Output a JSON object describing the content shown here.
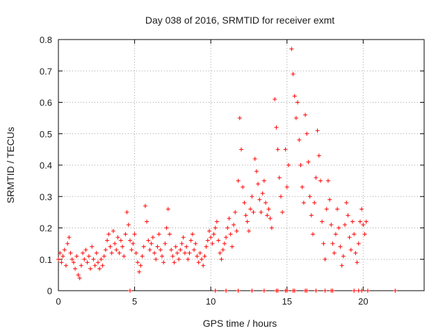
{
  "chart_data": {
    "type": "scatter",
    "title": "Day 038 of 2016, SRMTID for receiver exmt",
    "xlabel": "GPS time / hours",
    "ylabel": "SRMTID / TECUs",
    "xlim": [
      0,
      24
    ],
    "ylim": [
      0,
      0.8
    ],
    "xticks": [
      0,
      5,
      10,
      15,
      20
    ],
    "xtick_labels": [
      "0",
      "5",
      "10",
      "15",
      "20"
    ],
    "yticks": [
      0,
      0.1,
      0.2,
      0.3,
      0.4,
      0.5,
      0.6,
      0.7,
      0.8
    ],
    "ytick_labels": [
      "0",
      "0.1",
      "0.2",
      "0.3",
      "0.4",
      "0.5",
      "0.6",
      "0.7",
      "0.8"
    ],
    "grid": true,
    "marker": "+",
    "color": "#ff0000",
    "series": [
      {
        "name": "SRMTID",
        "points": [
          [
            0.0,
            0.1
          ],
          [
            0.1,
            0.12
          ],
          [
            0.2,
            0.09
          ],
          [
            0.3,
            0.11
          ],
          [
            0.4,
            0.13
          ],
          [
            0.5,
            0.08
          ],
          [
            0.6,
            0.15
          ],
          [
            0.7,
            0.17
          ],
          [
            0.8,
            0.12
          ],
          [
            0.9,
            0.1
          ],
          [
            1.0,
            0.09
          ],
          [
            1.1,
            0.07
          ],
          [
            1.2,
            0.11
          ],
          [
            1.3,
            0.05
          ],
          [
            1.4,
            0.04
          ],
          [
            1.5,
            0.08
          ],
          [
            1.6,
            0.12
          ],
          [
            1.7,
            0.1
          ],
          [
            1.8,
            0.13
          ],
          [
            1.9,
            0.09
          ],
          [
            2.0,
            0.11
          ],
          [
            2.1,
            0.07
          ],
          [
            2.2,
            0.14
          ],
          [
            2.3,
            0.1
          ],
          [
            2.4,
            0.08
          ],
          [
            2.5,
            0.12
          ],
          [
            2.6,
            0.09
          ],
          [
            2.7,
            0.07
          ],
          [
            2.8,
            0.1
          ],
          [
            2.9,
            0.08
          ],
          [
            3.0,
            0.11
          ],
          [
            3.1,
            0.13
          ],
          [
            3.2,
            0.16
          ],
          [
            3.3,
            0.18
          ],
          [
            3.4,
            0.14
          ],
          [
            3.5,
            0.12
          ],
          [
            3.6,
            0.19
          ],
          [
            3.7,
            0.15
          ],
          [
            3.8,
            0.13
          ],
          [
            3.9,
            0.17
          ],
          [
            4.0,
            0.12
          ],
          [
            4.1,
            0.16
          ],
          [
            4.2,
            0.14
          ],
          [
            4.3,
            0.11
          ],
          [
            4.4,
            0.18
          ],
          [
            4.5,
            0.25
          ],
          [
            4.6,
            0.21
          ],
          [
            4.7,
            0.16
          ],
          [
            4.8,
            0.13
          ],
          [
            4.9,
            0.15
          ],
          [
            5.0,
            0.18
          ],
          [
            5.1,
            0.12
          ],
          [
            5.2,
            0.09
          ],
          [
            5.3,
            0.06
          ],
          [
            5.4,
            0.08
          ],
          [
            5.5,
            0.11
          ],
          [
            5.6,
            0.14
          ],
          [
            5.7,
            0.27
          ],
          [
            5.8,
            0.22
          ],
          [
            5.9,
            0.16
          ],
          [
            6.0,
            0.13
          ],
          [
            6.1,
            0.15
          ],
          [
            6.2,
            0.17
          ],
          [
            6.3,
            0.12
          ],
          [
            6.4,
            0.1
          ],
          [
            6.5,
            0.14
          ],
          [
            6.6,
            0.18
          ],
          [
            6.7,
            0.13
          ],
          [
            6.8,
            0.11
          ],
          [
            6.9,
            0.09
          ],
          [
            7.0,
            0.15
          ],
          [
            7.1,
            0.2
          ],
          [
            7.2,
            0.26
          ],
          [
            7.3,
            0.18
          ],
          [
            7.4,
            0.13
          ],
          [
            7.5,
            0.11
          ],
          [
            7.6,
            0.09
          ],
          [
            7.7,
            0.14
          ],
          [
            7.8,
            0.12
          ],
          [
            7.9,
            0.1
          ],
          [
            8.0,
            0.13
          ],
          [
            8.1,
            0.15
          ],
          [
            8.2,
            0.17
          ],
          [
            8.3,
            0.12
          ],
          [
            8.4,
            0.14
          ],
          [
            8.5,
            0.1
          ],
          [
            8.6,
            0.12
          ],
          [
            8.7,
            0.16
          ],
          [
            8.8,
            0.18
          ],
          [
            8.9,
            0.13
          ],
          [
            9.0,
            0.15
          ],
          [
            9.1,
            0.11
          ],
          [
            9.2,
            0.09
          ],
          [
            9.3,
            0.12
          ],
          [
            9.4,
            0.1
          ],
          [
            9.5,
            0.08
          ],
          [
            9.6,
            0.11
          ],
          [
            9.7,
            0.14
          ],
          [
            9.8,
            0.16
          ],
          [
            9.9,
            0.19
          ],
          [
            10.0,
            0.17
          ],
          [
            10.1,
            0.15
          ],
          [
            10.2,
            0.18
          ],
          [
            10.3,
            0.2
          ],
          [
            10.4,
            0.22
          ],
          [
            10.5,
            0.16
          ],
          [
            10.6,
            0.12
          ],
          [
            10.7,
            0.1
          ],
          [
            10.8,
            0.13
          ],
          [
            10.9,
            0.15
          ],
          [
            11.0,
            0.17
          ],
          [
            11.1,
            0.2
          ],
          [
            11.2,
            0.23
          ],
          [
            11.3,
            0.18
          ],
          [
            11.4,
            0.14
          ],
          [
            11.5,
            0.21
          ],
          [
            11.6,
            0.25
          ],
          [
            11.7,
            0.19
          ],
          [
            11.8,
            0.35
          ],
          [
            11.9,
            0.55
          ],
          [
            12.0,
            0.45
          ],
          [
            12.1,
            0.33
          ],
          [
            12.2,
            0.28
          ],
          [
            12.3,
            0.24
          ],
          [
            12.4,
            0.22
          ],
          [
            12.5,
            0.19
          ],
          [
            12.6,
            0.26
          ],
          [
            12.7,
            0.3
          ],
          [
            12.8,
            0.25
          ],
          [
            12.9,
            0.42
          ],
          [
            13.0,
            0.38
          ],
          [
            13.1,
            0.34
          ],
          [
            13.2,
            0.29
          ],
          [
            13.3,
            0.25
          ],
          [
            13.4,
            0.31
          ],
          [
            13.5,
            0.35
          ],
          [
            13.6,
            0.28
          ],
          [
            13.7,
            0.24
          ],
          [
            13.8,
            0.26
          ],
          [
            13.9,
            0.23
          ],
          [
            14.0,
            0.2
          ],
          [
            14.2,
            0.61
          ],
          [
            14.3,
            0.52
          ],
          [
            14.4,
            0.45
          ],
          [
            14.5,
            0.36
          ],
          [
            14.6,
            0.3
          ],
          [
            14.7,
            0.25
          ],
          [
            14.9,
            0.45
          ],
          [
            15.0,
            0.33
          ],
          [
            15.1,
            0.4
          ],
          [
            15.3,
            0.77
          ],
          [
            15.4,
            0.69
          ],
          [
            15.5,
            0.62
          ],
          [
            15.6,
            0.55
          ],
          [
            15.7,
            0.6
          ],
          [
            15.8,
            0.48
          ],
          [
            15.9,
            0.4
          ],
          [
            16.0,
            0.33
          ],
          [
            16.1,
            0.28
          ],
          [
            16.2,
            0.56
          ],
          [
            16.3,
            0.5
          ],
          [
            16.4,
            0.41
          ],
          [
            16.5,
            0.3
          ],
          [
            16.6,
            0.24
          ],
          [
            16.7,
            0.18
          ],
          [
            16.8,
            0.28
          ],
          [
            16.9,
            0.36
          ],
          [
            17.0,
            0.51
          ],
          [
            17.1,
            0.43
          ],
          [
            17.2,
            0.35
          ],
          [
            17.3,
            0.22
          ],
          [
            17.4,
            0.15
          ],
          [
            17.5,
            0.1
          ],
          [
            17.6,
            0.26
          ],
          [
            17.7,
            0.35
          ],
          [
            17.8,
            0.29
          ],
          [
            17.9,
            0.21
          ],
          [
            18.0,
            0.15
          ],
          [
            18.1,
            0.12
          ],
          [
            18.2,
            0.18
          ],
          [
            18.3,
            0.26
          ],
          [
            18.4,
            0.2
          ],
          [
            18.5,
            0.14
          ],
          [
            18.6,
            0.08
          ],
          [
            18.7,
            0.11
          ],
          [
            18.8,
            0.21
          ],
          [
            18.9,
            0.28
          ],
          [
            19.0,
            0.24
          ],
          [
            19.1,
            0.17
          ],
          [
            19.2,
            0.13
          ],
          [
            19.3,
            0.22
          ],
          [
            19.4,
            0.18
          ],
          [
            19.5,
            0.12
          ],
          [
            19.6,
            0.09
          ],
          [
            19.7,
            0.15
          ],
          [
            19.8,
            0.22
          ],
          [
            19.9,
            0.26
          ],
          [
            20.0,
            0.21
          ],
          [
            20.1,
            0.18
          ],
          [
            20.2,
            0.22
          ],
          [
            4.7,
            0.0
          ],
          [
            10.3,
            0.0
          ],
          [
            11.0,
            0.0
          ],
          [
            11.8,
            0.0
          ],
          [
            12.7,
            0.0
          ],
          [
            13.5,
            0.0
          ],
          [
            14.3,
            0.0
          ],
          [
            14.4,
            0.0
          ],
          [
            14.9,
            0.0
          ],
          [
            15.0,
            0.0
          ],
          [
            15.4,
            0.0
          ],
          [
            15.5,
            0.0
          ],
          [
            16.2,
            0.0
          ],
          [
            16.3,
            0.0
          ],
          [
            16.9,
            0.0
          ],
          [
            17.5,
            0.0
          ],
          [
            17.9,
            0.0
          ],
          [
            18.0,
            0.0
          ],
          [
            19.4,
            0.0
          ],
          [
            19.7,
            0.0
          ],
          [
            19.9,
            0.0
          ],
          [
            20.3,
            0.0
          ],
          [
            22.1,
            0.0
          ]
        ]
      }
    ]
  }
}
